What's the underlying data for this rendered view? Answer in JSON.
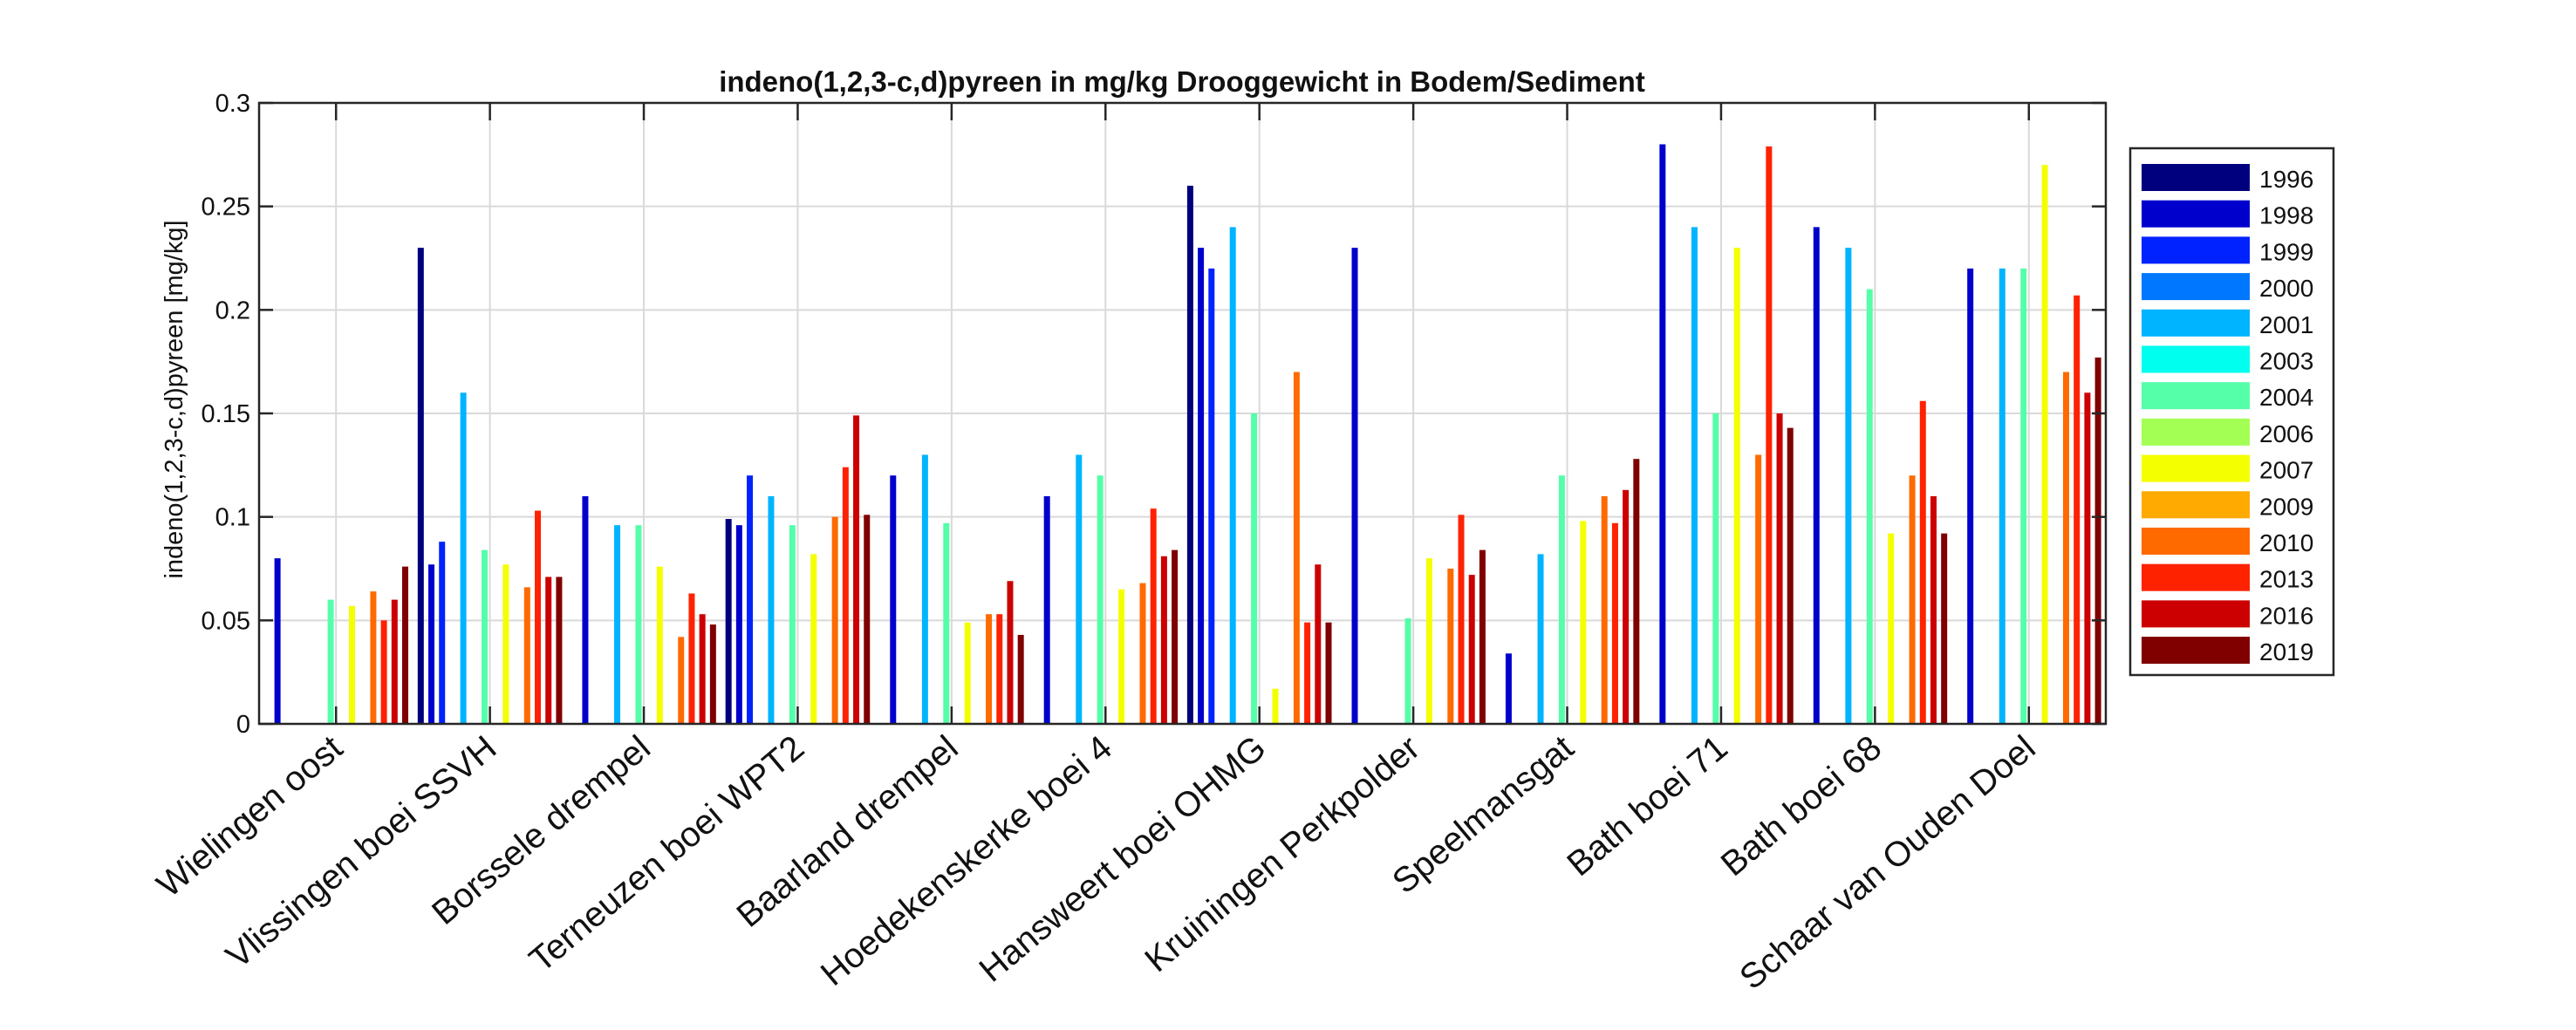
{
  "chart_data": {
    "type": "bar",
    "title": "indeno(1,2,3-c,d)pyreen in mg/kg Drooggewicht in Bodem/Sediment",
    "xlabel": "",
    "ylabel": "indeno(1,2,3-c,d)pyreen [mg/kg]",
    "ylim": [
      0,
      0.3
    ],
    "yticks": [
      "0",
      "0.05",
      "0.1",
      "0.15",
      "0.2",
      "0.25",
      "0.3"
    ],
    "grid": true,
    "legend_position": "right",
    "categories": [
      "Wielingen oost",
      "Vlissingen boei SSVH",
      "Borssele drempel",
      "Terneuzen boei WPT2",
      "Baarland drempel",
      "Hoedekenskerke boei 4",
      "Hansweert boei OHMG",
      "Kruiningen Perkpolder",
      "Speelmansgat",
      "Bath boei 71",
      "Bath boei 68",
      "Schaar van Ouden Doel"
    ],
    "series": [
      {
        "name": "1996",
        "color": "#00007f",
        "values": [
          null,
          0.23,
          null,
          0.099,
          null,
          null,
          0.26,
          null,
          null,
          null,
          null,
          null
        ]
      },
      {
        "name": "1998",
        "color": "#0000cc",
        "values": [
          0.08,
          0.077,
          0.11,
          0.096,
          0.12,
          0.11,
          0.23,
          0.23,
          0.034,
          0.28,
          0.24,
          0.22
        ]
      },
      {
        "name": "1999",
        "color": "#0022ff",
        "values": [
          null,
          0.088,
          null,
          0.12,
          null,
          null,
          0.22,
          null,
          null,
          null,
          null,
          null
        ]
      },
      {
        "name": "2000",
        "color": "#0077ff",
        "values": [
          null,
          null,
          null,
          null,
          null,
          null,
          null,
          null,
          null,
          null,
          null,
          null
        ]
      },
      {
        "name": "2001",
        "color": "#00b4ff",
        "values": [
          null,
          0.16,
          0.096,
          0.11,
          0.13,
          0.13,
          0.24,
          null,
          0.082,
          0.24,
          0.23,
          0.22
        ]
      },
      {
        "name": "2003",
        "color": "#00ffee",
        "values": [
          null,
          null,
          null,
          null,
          null,
          null,
          null,
          null,
          null,
          null,
          null,
          null
        ]
      },
      {
        "name": "2004",
        "color": "#55ffaa",
        "values": [
          0.06,
          0.084,
          0.096,
          0.096,
          0.097,
          0.12,
          0.15,
          0.051,
          0.12,
          0.15,
          0.21,
          0.22
        ]
      },
      {
        "name": "2006",
        "color": "#a4ff55",
        "values": [
          null,
          null,
          null,
          null,
          null,
          null,
          null,
          null,
          null,
          null,
          null,
          null
        ]
      },
      {
        "name": "2007",
        "color": "#f4ff00",
        "values": [
          0.057,
          0.077,
          0.076,
          0.082,
          0.049,
          0.065,
          0.017,
          0.08,
          0.098,
          0.23,
          0.092,
          0.27
        ]
      },
      {
        "name": "2009",
        "color": "#ffaa00",
        "values": [
          null,
          null,
          null,
          null,
          null,
          null,
          null,
          null,
          null,
          null,
          null,
          null
        ]
      },
      {
        "name": "2010",
        "color": "#ff6a00",
        "values": [
          0.064,
          0.066,
          0.042,
          0.1,
          0.053,
          0.068,
          0.17,
          0.075,
          0.11,
          0.13,
          0.12,
          0.17
        ]
      },
      {
        "name": "2013",
        "color": "#ff2200",
        "values": [
          0.05,
          0.103,
          0.063,
          0.124,
          0.053,
          0.104,
          0.049,
          0.101,
          0.097,
          0.279,
          0.156,
          0.207
        ]
      },
      {
        "name": "2016",
        "color": "#cc0000",
        "values": [
          0.06,
          0.071,
          0.053,
          0.149,
          0.069,
          0.081,
          0.077,
          0.072,
          0.113,
          0.15,
          0.11,
          0.16
        ]
      },
      {
        "name": "2019",
        "color": "#800000",
        "values": [
          0.076,
          0.071,
          0.048,
          0.101,
          0.043,
          0.084,
          0.049,
          0.084,
          0.128,
          0.143,
          0.092,
          0.177
        ]
      }
    ]
  }
}
